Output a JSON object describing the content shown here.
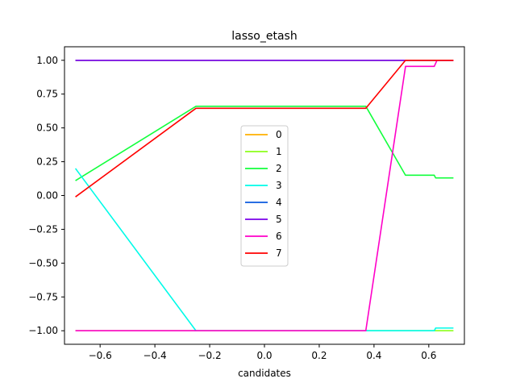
{
  "chart_data": {
    "type": "line",
    "title": "lasso_etash",
    "xlabel": "candidates",
    "ylabel": "",
    "xlim": [
      -0.73,
      0.73
    ],
    "ylim": [
      -1.1,
      1.1
    ],
    "xticks": [
      -0.6,
      -0.4,
      -0.2,
      0.0,
      0.2,
      0.4,
      0.6
    ],
    "xtick_labels": [
      "−0.6",
      "−0.4",
      "−0.2",
      "0.0",
      "0.2",
      "0.4",
      "0.6"
    ],
    "yticks": [
      -1.0,
      -0.75,
      -0.5,
      -0.25,
      0.0,
      0.25,
      0.5,
      0.75,
      1.0
    ],
    "ytick_labels": [
      "−1.00",
      "−0.75",
      "−0.50",
      "−0.25",
      "0.00",
      "0.25",
      "0.50",
      "0.75",
      "1.00"
    ],
    "grid": false,
    "legend_position": "center",
    "series": [
      {
        "name": "0",
        "color": "#ffb000",
        "x": [
          -0.69,
          0.69
        ],
        "y": [
          1.0,
          1.0
        ]
      },
      {
        "name": "1",
        "color": "#8cff1a",
        "x": [
          -0.69,
          0.62,
          0.69
        ],
        "y": [
          -1.0,
          -1.0,
          -1.0
        ]
      },
      {
        "name": "2",
        "color": "#12ff3c",
        "x": [
          -0.69,
          -0.25,
          0.37,
          0.515,
          0.62,
          0.625,
          0.69
        ],
        "y": [
          0.11,
          0.66,
          0.66,
          0.15,
          0.15,
          0.13,
          0.13
        ]
      },
      {
        "name": "3",
        "color": "#00fbe8",
        "x": [
          -0.69,
          -0.25,
          0.37,
          0.62,
          0.625,
          0.69
        ],
        "y": [
          0.2,
          -1.0,
          -1.0,
          -1.0,
          -0.98,
          -0.98
        ]
      },
      {
        "name": "4",
        "color": "#0a5adf",
        "x": [
          -0.69,
          0.69
        ],
        "y": [
          1.0,
          1.0
        ]
      },
      {
        "name": "5",
        "color": "#7a00ea",
        "x": [
          -0.69,
          0.69
        ],
        "y": [
          1.0,
          1.0
        ]
      },
      {
        "name": "6",
        "color": "#ff00c8",
        "x": [
          -0.69,
          0.37,
          0.515,
          0.62,
          0.63,
          0.69
        ],
        "y": [
          -1.0,
          -1.0,
          0.955,
          0.955,
          1.0,
          1.0
        ]
      },
      {
        "name": "7",
        "color": "#ff0000",
        "x": [
          -0.69,
          -0.25,
          0.37,
          0.515,
          0.69
        ],
        "y": [
          -0.01,
          0.645,
          0.645,
          1.0,
          1.0
        ]
      }
    ]
  }
}
